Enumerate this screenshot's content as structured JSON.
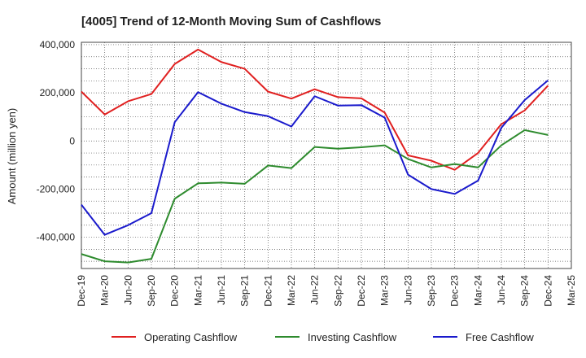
{
  "chart_data": {
    "type": "line",
    "title": "[4005]  Trend of 12-Month Moving Sum of Cashflows",
    "xlabel": "",
    "ylabel": "Amount (million yen)",
    "ylim": [
      -530000,
      410000
    ],
    "yticks": [
      400000,
      200000,
      0,
      -200000,
      -400000
    ],
    "ytick_labels": [
      "400,000",
      "200,000",
      "0",
      "-200,000",
      "-400,000"
    ],
    "categories": [
      "Dec-19",
      "Mar-20",
      "Jun-20",
      "Sep-20",
      "Dec-20",
      "Mar-21",
      "Jun-21",
      "Sep-21",
      "Dec-21",
      "Mar-22",
      "Jun-22",
      "Sep-22",
      "Dec-22",
      "Mar-23",
      "Jun-23",
      "Sep-23",
      "Dec-23",
      "Mar-24",
      "Jun-24",
      "Sep-24",
      "Dec-24",
      "Mar-25"
    ],
    "grid": true,
    "legend_position": "bottom",
    "series": [
      {
        "name": "Operating Cashflow",
        "color": "#e02020",
        "values": [
          205000,
          110000,
          165000,
          195000,
          320000,
          380000,
          328000,
          300000,
          205000,
          176000,
          215000,
          182000,
          177000,
          118000,
          -60000,
          -82000,
          -120000,
          -50000,
          70000,
          127000,
          230000,
          null
        ]
      },
      {
        "name": "Investing Cashflow",
        "color": "#2e8b2e",
        "values": [
          -470000,
          -500000,
          -505000,
          -490000,
          -240000,
          -176000,
          -173000,
          -178000,
          -102000,
          -113000,
          -25000,
          -32000,
          -26000,
          -18000,
          -75000,
          -110000,
          -96000,
          -110000,
          -18000,
          45000,
          25000,
          null
        ]
      },
      {
        "name": "Free Cashflow",
        "color": "#1a1acc",
        "values": [
          -265000,
          -390000,
          -350000,
          -300000,
          78000,
          203000,
          155000,
          120000,
          103000,
          60000,
          186000,
          147000,
          149000,
          97000,
          -140000,
          -200000,
          -220000,
          -165000,
          55000,
          170000,
          252000,
          null
        ]
      }
    ]
  }
}
